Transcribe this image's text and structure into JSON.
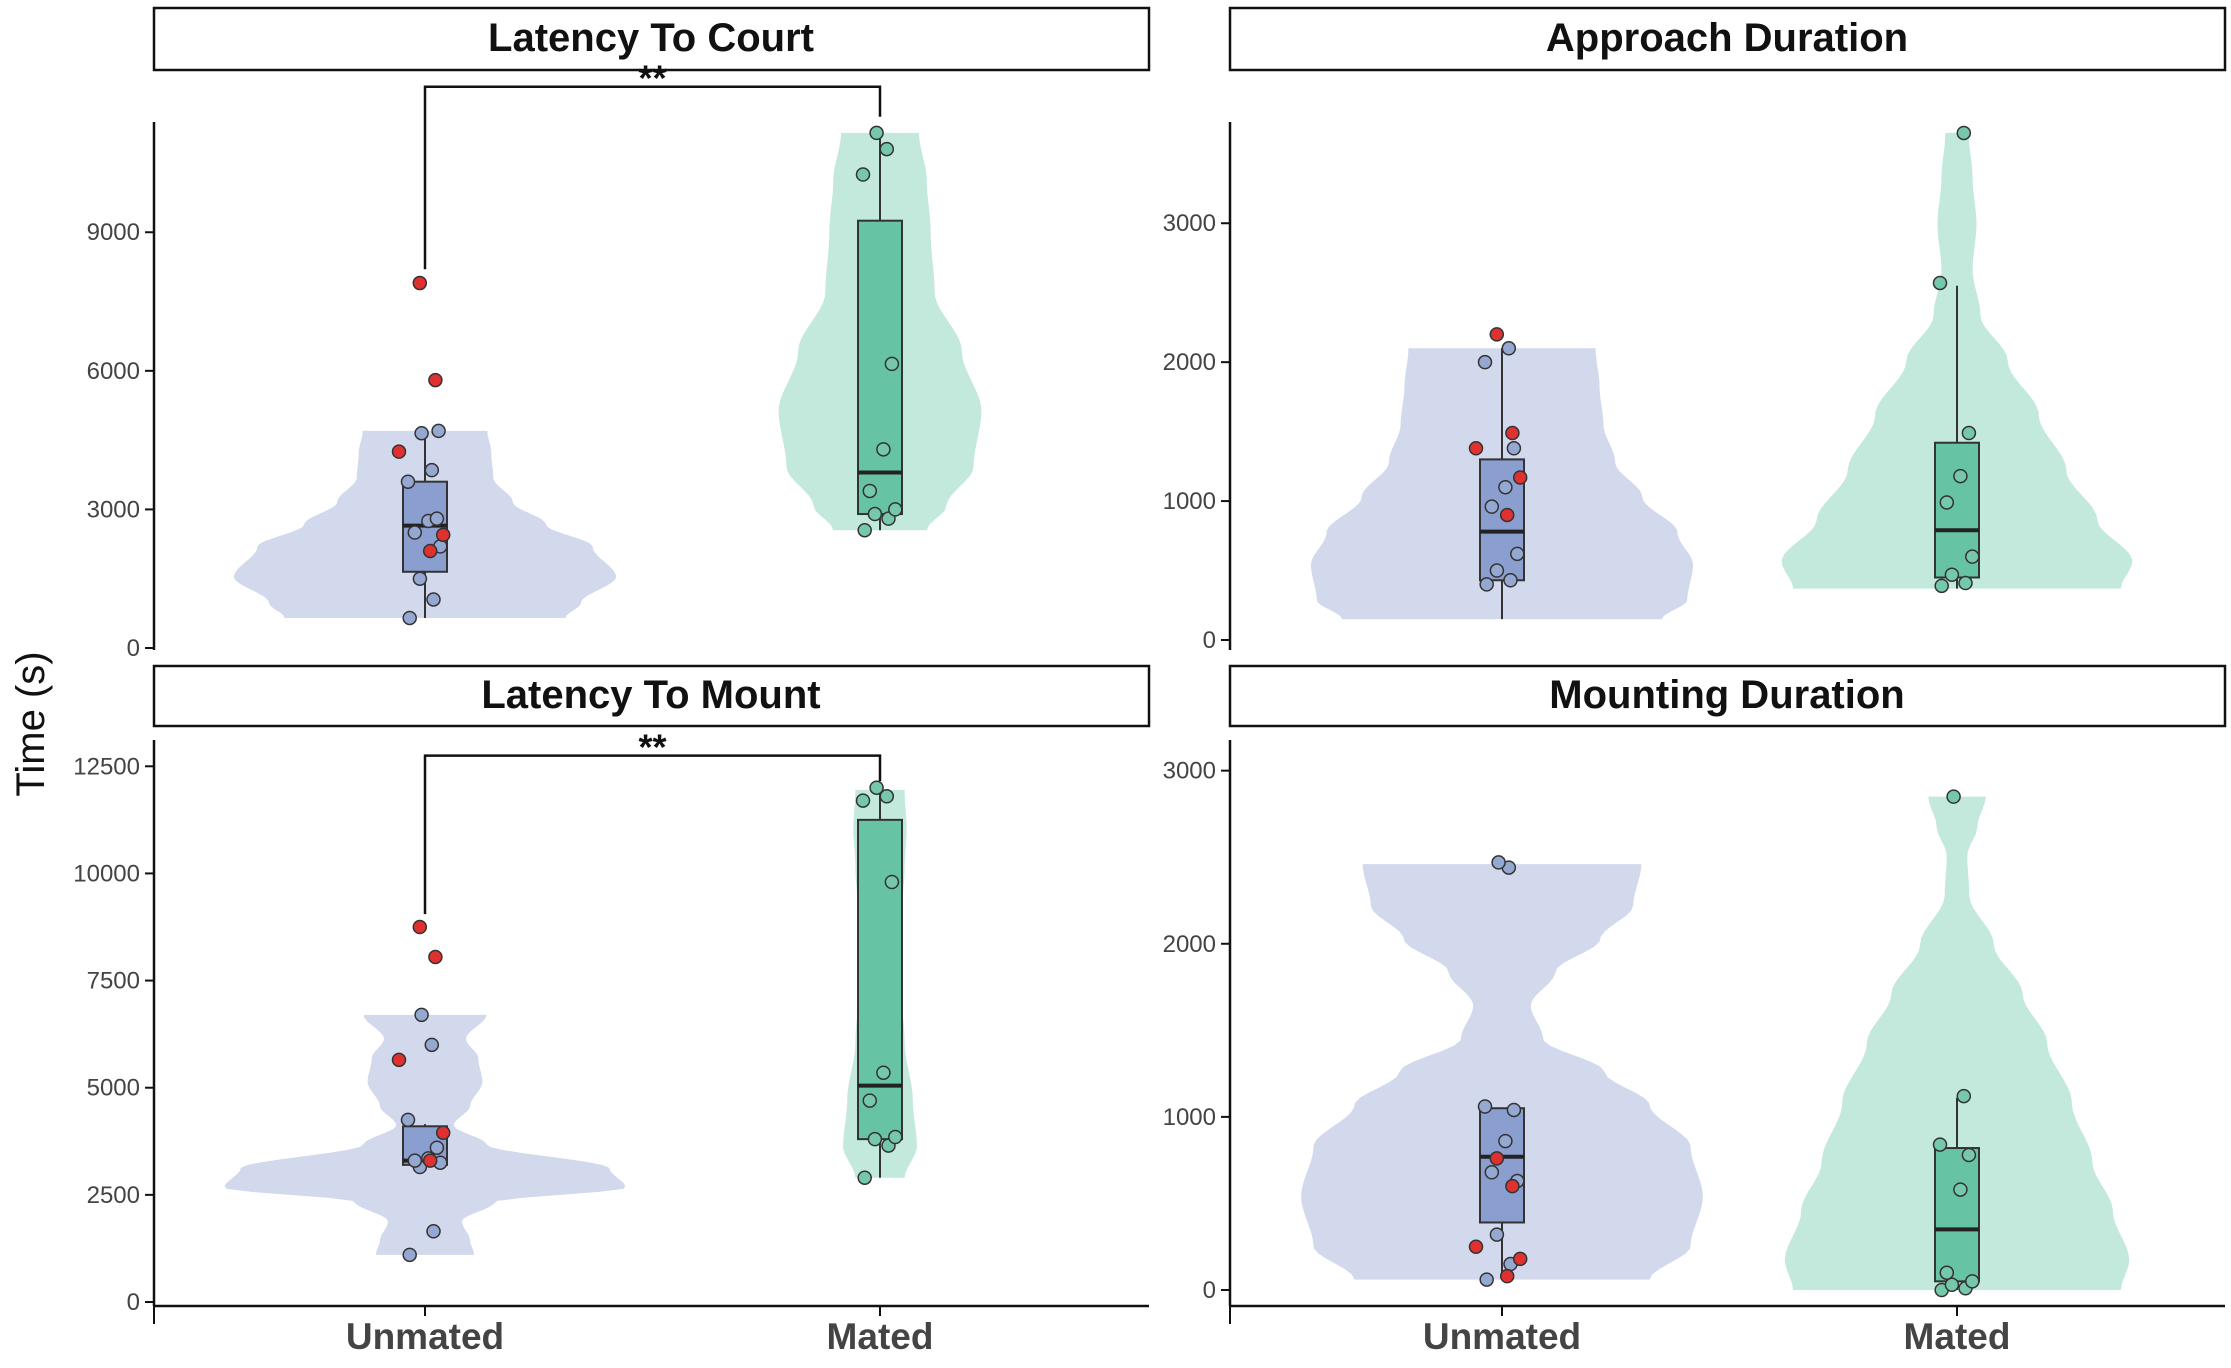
{
  "chart_data": {
    "type": "violin",
    "ylabel": "Time (s)",
    "categories": [
      "Unmated",
      "Mated"
    ],
    "colors": {
      "violin": [
        "#d3d9ec",
        "#c3e8dc"
      ],
      "box": [
        "#8a9fcf",
        "#66c4a5"
      ],
      "point": [
        "#95a8d2",
        "#76c8aa"
      ],
      "outlier": "#e03131",
      "stroke": "#333333"
    },
    "panels": [
      {
        "title": "Latency To Court",
        "ylim": [
          0,
          11300
        ],
        "yticks": [
          0,
          3000,
          6000,
          9000
        ],
        "ytick_labels": [
          "0",
          "3000",
          "6000",
          "9000"
        ],
        "significance": "**",
        "bracket_top": 12150,
        "bracket_left_bottom": 8200,
        "bracket_right_bottom": 11500,
        "groups": [
          {
            "name": "Unmated",
            "violin_range": [
              650,
              4700
            ],
            "violin_shape": [
              [
                0,
                0.72
              ],
              [
                0.08,
                0.8
              ],
              [
                0.22,
                0.98
              ],
              [
                0.38,
                0.86
              ],
              [
                0.5,
                0.62
              ],
              [
                0.62,
                0.45
              ],
              [
                0.75,
                0.35
              ],
              [
                0.88,
                0.34
              ],
              [
                1,
                0.32
              ]
            ],
            "box": {
              "q1": 1650,
              "median": 2650,
              "q3": 3600,
              "whisker_low": 650,
              "whisker_high": 4700
            },
            "points": [
              650,
              1050,
              1500,
              2200,
              2500,
              2750,
              2800,
              3600,
              3850,
              4650,
              4700
            ],
            "outliers": [
              2100,
              2450,
              4250,
              5800,
              7900
            ]
          },
          {
            "name": "Mated",
            "violin_range": [
              2550,
              11150
            ],
            "violin_shape": [
              [
                0,
                0.24
              ],
              [
                0.06,
                0.34
              ],
              [
                0.16,
                0.48
              ],
              [
                0.3,
                0.52
              ],
              [
                0.45,
                0.42
              ],
              [
                0.6,
                0.28
              ],
              [
                0.75,
                0.26
              ],
              [
                0.88,
                0.24
              ],
              [
                1,
                0.2
              ]
            ],
            "box": {
              "q1": 2900,
              "median": 3800,
              "q3": 9250,
              "whisker_low": 2550,
              "whisker_high": 11150
            },
            "points": [
              2550,
              2800,
              2900,
              3000,
              3400,
              4300,
              6150,
              10250,
              10800,
              11150
            ],
            "outliers": []
          }
        ]
      },
      {
        "title": "Approach Duration",
        "ylim": [
          0,
          3700
        ],
        "yticks": [
          0,
          1000,
          2000,
          3000
        ],
        "ytick_labels": [
          "0",
          "1000",
          "2000",
          "3000"
        ],
        "significance": "",
        "groups": [
          {
            "name": "Unmated",
            "violin_range": [
              150,
              2100
            ],
            "violin_shape": [
              [
                0,
                0.82
              ],
              [
                0.07,
                0.95
              ],
              [
                0.2,
                0.98
              ],
              [
                0.32,
                0.9
              ],
              [
                0.45,
                0.72
              ],
              [
                0.58,
                0.58
              ],
              [
                0.72,
                0.52
              ],
              [
                0.86,
                0.5
              ],
              [
                1,
                0.48
              ]
            ],
            "box": {
              "q1": 430,
              "median": 780,
              "q3": 1300,
              "whisker_low": 150,
              "whisker_high": 2100
            },
            "points": [
              400,
              430,
              500,
              620,
              960,
              1100,
              1380,
              2000,
              2100
            ],
            "outliers": [
              900,
              1170,
              1380,
              1490,
              2200
            ]
          },
          {
            "name": "Mated",
            "violin_range": [
              370,
              3650
            ],
            "violin_shape": [
              [
                0,
                0.84
              ],
              [
                0.06,
                0.9
              ],
              [
                0.15,
                0.72
              ],
              [
                0.26,
                0.56
              ],
              [
                0.38,
                0.42
              ],
              [
                0.5,
                0.26
              ],
              [
                0.6,
                0.12
              ],
              [
                0.7,
                0.08
              ],
              [
                0.8,
                0.1
              ],
              [
                0.9,
                0.08
              ],
              [
                1,
                0.06
              ]
            ],
            "box": {
              "q1": 450,
              "median": 790,
              "q3": 1420,
              "whisker_low": 370,
              "whisker_high": 2550
            },
            "points": [
              390,
              410,
              470,
              600,
              990,
              1180,
              1490,
              2570,
              3650
            ],
            "outliers": []
          }
        ]
      },
      {
        "title": "Latency To Mount",
        "ylim": [
          0,
          12600
        ],
        "yticks": [
          0,
          2500,
          5000,
          7500,
          10000,
          12500
        ],
        "ytick_labels": [
          "0",
          "2500",
          "5000",
          "7500",
          "10000",
          "12500"
        ],
        "significance": "**",
        "bracket_top": 12750,
        "bracket_left_bottom": 9050,
        "bracket_right_bottom": 12150,
        "groups": [
          {
            "name": "Unmated",
            "violin_range": [
              1100,
              6700
            ],
            "violin_shape": [
              [
                0,
                0.24
              ],
              [
                0.06,
                0.22
              ],
              [
                0.14,
                0.18
              ],
              [
                0.22,
                0.34
              ],
              [
                0.28,
                0.98
              ],
              [
                0.36,
                0.9
              ],
              [
                0.46,
                0.3
              ],
              [
                0.54,
                0.14
              ],
              [
                0.62,
                0.22
              ],
              [
                0.72,
                0.28
              ],
              [
                0.82,
                0.26
              ],
              [
                0.9,
                0.2
              ],
              [
                1,
                0.3
              ]
            ],
            "box": {
              "q1": 3200,
              "median": 3300,
              "q3": 4100,
              "whisker_low": 3100,
              "whisker_high": 4150
            },
            "points": [
              1100,
              1650,
              3150,
              3250,
              3300,
              3350,
              3600,
              4250,
              6000,
              6700
            ],
            "outliers": [
              3300,
              3950,
              5650,
              8050,
              8750
            ]
          },
          {
            "name": "Mated",
            "violin_range": [
              2900,
              11950
            ],
            "violin_shape": [
              [
                0,
                0.12
              ],
              [
                0.08,
                0.18
              ],
              [
                0.2,
                0.16
              ],
              [
                0.35,
                0.12
              ],
              [
                0.5,
                0.1
              ],
              [
                0.65,
                0.1
              ],
              [
                0.8,
                0.12
              ],
              [
                0.9,
                0.13
              ],
              [
                1,
                0.12
              ]
            ],
            "box": {
              "q1": 3800,
              "median": 5050,
              "q3": 11250,
              "whisker_low": 2900,
              "whisker_high": 11950
            },
            "points": [
              2900,
              3650,
              3800,
              3850,
              4700,
              5350,
              9800,
              11700,
              11800,
              12000
            ],
            "outliers": []
          }
        ]
      },
      {
        "title": "Mounting Duration",
        "ylim": [
          0,
          3050
        ],
        "yticks": [
          0,
          1000,
          2000,
          3000
        ],
        "ytick_labels": [
          "0",
          "1000",
          "2000",
          "3000"
        ],
        "significance": "",
        "groups": [
          {
            "name": "Unmated",
            "violin_range": [
              60,
              2460
            ],
            "violin_shape": [
              [
                0,
                0.72
              ],
              [
                0.08,
                0.92
              ],
              [
                0.2,
                0.98
              ],
              [
                0.32,
                0.92
              ],
              [
                0.42,
                0.72
              ],
              [
                0.5,
                0.5
              ],
              [
                0.58,
                0.2
              ],
              [
                0.66,
                0.14
              ],
              [
                0.74,
                0.26
              ],
              [
                0.82,
                0.48
              ],
              [
                0.9,
                0.64
              ],
              [
                1,
                0.68
              ]
            ],
            "box": {
              "q1": 390,
              "median": 770,
              "q3": 1050,
              "whisker_low": 60,
              "whisker_high": 1050
            },
            "points": [
              60,
              150,
              320,
              630,
              680,
              860,
              1040,
              1060,
              2440,
              2470
            ],
            "outliers": [
              80,
              180,
              250,
              600,
              760
            ]
          },
          {
            "name": "Mated",
            "violin_range": [
              0,
              2850
            ],
            "violin_shape": [
              [
                0,
                0.8
              ],
              [
                0.06,
                0.84
              ],
              [
                0.16,
                0.76
              ],
              [
                0.26,
                0.66
              ],
              [
                0.38,
                0.56
              ],
              [
                0.5,
                0.44
              ],
              [
                0.6,
                0.32
              ],
              [
                0.7,
                0.18
              ],
              [
                0.8,
                0.06
              ],
              [
                0.88,
                0.05
              ],
              [
                0.94,
                0.1
              ],
              [
                1,
                0.14
              ]
            ],
            "box": {
              "q1": 50,
              "median": 350,
              "q3": 820,
              "whisker_low": 0,
              "whisker_high": 1110
            },
            "points": [
              0,
              10,
              30,
              50,
              100,
              580,
              780,
              840,
              1120,
              2850
            ],
            "outliers": []
          }
        ]
      }
    ]
  }
}
